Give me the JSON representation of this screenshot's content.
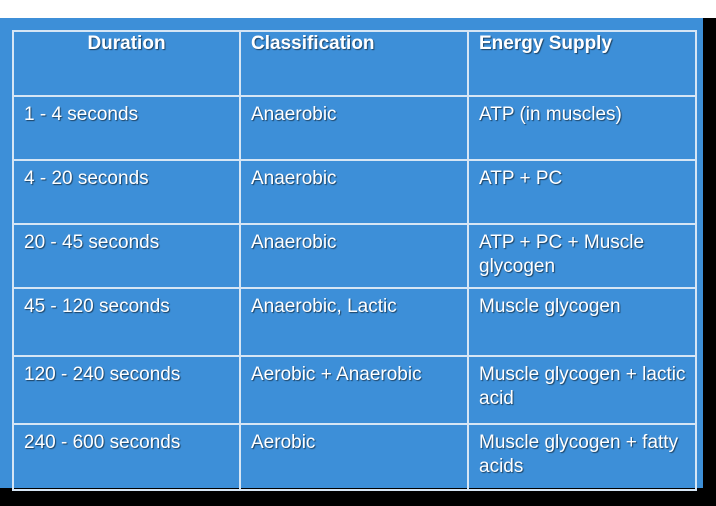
{
  "table": {
    "headers": {
      "duration": "Duration",
      "classification": "Classification",
      "energy_supply": "Energy Supply"
    },
    "rows": [
      {
        "duration": "1 - 4 seconds",
        "classification": "Anaerobic",
        "energy_supply": "ATP (in muscles)"
      },
      {
        "duration": "4 - 20 seconds",
        "classification": "Anaerobic",
        "energy_supply": "ATP + PC"
      },
      {
        "duration": "20 - 45 seconds",
        "classification": "Anaerobic",
        "energy_supply": "ATP + PC + Muscle glycogen"
      },
      {
        "duration": "45 - 120 seconds",
        "classification": "Anaerobic, Lactic",
        "energy_supply": "Muscle glycogen"
      },
      {
        "duration": "120 - 240 seconds",
        "classification": "Aerobic + Anaerobic",
        "energy_supply": "Muscle glycogen + lactic acid"
      },
      {
        "duration": "240 - 600 seconds",
        "classification": "Aerobic",
        "energy_supply": "Muscle glycogen + fatty acids"
      }
    ]
  },
  "colors": {
    "panel_background": "#3d8fd8",
    "grid_lines": "#d6e6f5",
    "text": "#ffffff",
    "frame": "#000000"
  }
}
